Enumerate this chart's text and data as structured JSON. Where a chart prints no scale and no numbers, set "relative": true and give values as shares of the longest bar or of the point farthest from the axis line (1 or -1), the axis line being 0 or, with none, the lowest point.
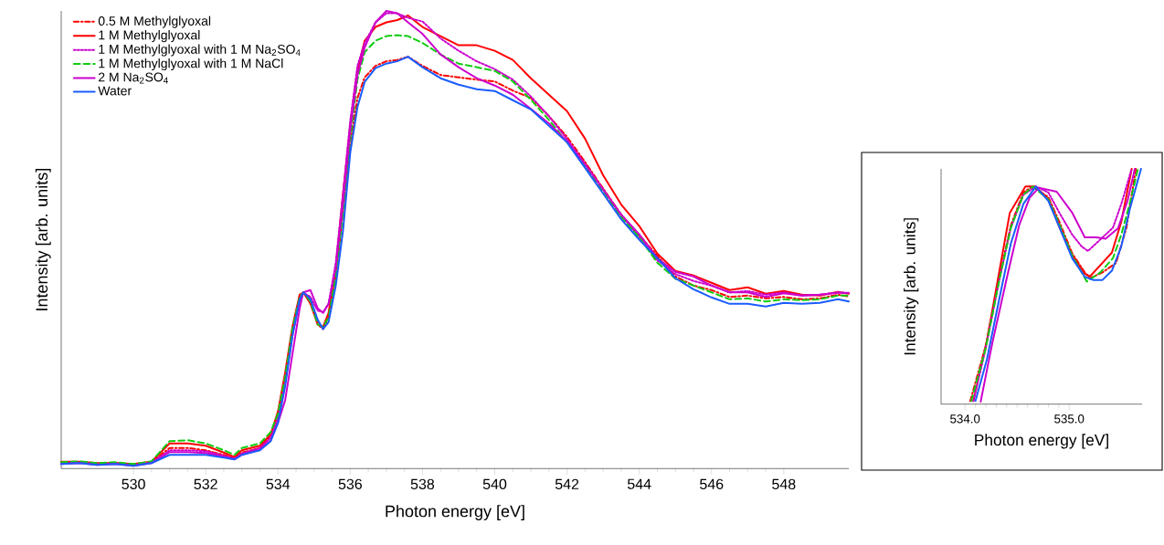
{
  "chart_data": [
    {
      "type": "line",
      "xlabel": "Photon energy [eV]",
      "ylabel": "Intensity [arb. units]",
      "relative": true,
      "legend": "top left",
      "xlim": [
        528,
        549.8
      ],
      "xticks": [
        530,
        532,
        534,
        536,
        538,
        540,
        542,
        544,
        546,
        548
      ],
      "x": [
        528,
        528.5,
        529,
        529.5,
        530,
        530.5,
        531,
        531.5,
        532,
        532.5,
        532.8,
        533,
        533.5,
        533.8,
        534,
        534.2,
        534.4,
        534.6,
        534.7,
        534.9,
        535.1,
        535.25,
        535.4,
        535.6,
        535.8,
        536,
        536.2,
        536.4,
        536.7,
        537,
        537.3,
        537.6,
        538,
        538.5,
        539,
        539.5,
        540,
        540.5,
        541,
        541.5,
        542,
        542.5,
        543,
        543.5,
        544,
        544.5,
        545,
        545.5,
        546,
        546.5,
        547,
        547.5,
        548,
        548.5,
        549,
        549.5,
        549.8
      ],
      "series": [
        {
          "name": "0.5 M Methylglyoxal",
          "color": "#ff0000",
          "line_style": "dashdot",
          "values": [
            0.012,
            0.014,
            0.01,
            0.012,
            0.008,
            0.014,
            0.045,
            0.045,
            0.04,
            0.03,
            0.022,
            0.035,
            0.045,
            0.07,
            0.115,
            0.2,
            0.3,
            0.375,
            0.385,
            0.365,
            0.315,
            0.305,
            0.33,
            0.42,
            0.56,
            0.71,
            0.81,
            0.855,
            0.88,
            0.89,
            0.893,
            0.9,
            0.88,
            0.86,
            0.855,
            0.85,
            0.846,
            0.826,
            0.81,
            0.77,
            0.725,
            0.67,
            0.612,
            0.555,
            0.51,
            0.465,
            0.42,
            0.4,
            0.39,
            0.375,
            0.378,
            0.372,
            0.375,
            0.37,
            0.372,
            0.38,
            0.376
          ]
        },
        {
          "name": "1 M Methylglyoxal",
          "color": "#ff0000",
          "line_style": "solid",
          "values": [
            0.015,
            0.015,
            0.012,
            0.012,
            0.01,
            0.015,
            0.055,
            0.055,
            0.05,
            0.035,
            0.025,
            0.04,
            0.05,
            0.075,
            0.125,
            0.21,
            0.31,
            0.38,
            0.385,
            0.36,
            0.315,
            0.31,
            0.34,
            0.44,
            0.6,
            0.75,
            0.87,
            0.935,
            0.965,
            0.975,
            0.98,
            0.99,
            0.965,
            0.945,
            0.925,
            0.925,
            0.913,
            0.893,
            0.853,
            0.817,
            0.781,
            0.721,
            0.641,
            0.577,
            0.53,
            0.47,
            0.432,
            0.422,
            0.406,
            0.39,
            0.396,
            0.382,
            0.388,
            0.38,
            0.378,
            0.386,
            0.382
          ]
        },
        {
          "name": "1 M Methylglyoxal with 1 M Na$_{2}$SO$_{4}$",
          "color": "#cc00cc",
          "line_style": "dotted",
          "values": [
            0.012,
            0.013,
            0.01,
            0.011,
            0.008,
            0.013,
            0.04,
            0.04,
            0.038,
            0.028,
            0.022,
            0.033,
            0.045,
            0.068,
            0.11,
            0.19,
            0.29,
            0.365,
            0.385,
            0.375,
            0.345,
            0.342,
            0.36,
            0.45,
            0.6,
            0.76,
            0.88,
            0.93,
            0.975,
            0.995,
            0.995,
            0.985,
            0.977,
            0.94,
            0.913,
            0.89,
            0.873,
            0.85,
            0.813,
            0.77,
            0.72,
            0.665,
            0.61,
            0.553,
            0.506,
            0.455,
            0.425,
            0.41,
            0.4,
            0.385,
            0.388,
            0.38,
            0.385,
            0.378,
            0.38,
            0.385,
            0.383
          ]
        },
        {
          "name": "1 M Methylglyoxal with 1 M NaCl",
          "color": "#11cc11",
          "line_style": "dashed",
          "values": [
            0.014,
            0.016,
            0.012,
            0.014,
            0.01,
            0.016,
            0.06,
            0.062,
            0.055,
            0.04,
            0.03,
            0.045,
            0.055,
            0.08,
            0.12,
            0.2,
            0.305,
            0.375,
            0.385,
            0.365,
            0.315,
            0.31,
            0.33,
            0.42,
            0.56,
            0.72,
            0.85,
            0.91,
            0.935,
            0.945,
            0.947,
            0.945,
            0.93,
            0.905,
            0.885,
            0.877,
            0.869,
            0.846,
            0.806,
            0.762,
            0.713,
            0.66,
            0.605,
            0.55,
            0.505,
            0.45,
            0.415,
            0.4,
            0.385,
            0.37,
            0.372,
            0.365,
            0.37,
            0.368,
            0.37,
            0.378,
            0.378
          ]
        },
        {
          "name": "2 M Na$_{2}$SO$_{4}$",
          "color": "#cc00cc",
          "line_style": "solid",
          "values": [
            0.01,
            0.012,
            0.008,
            0.01,
            0.006,
            0.012,
            0.036,
            0.036,
            0.034,
            0.026,
            0.02,
            0.03,
            0.042,
            0.062,
            0.1,
            0.15,
            0.25,
            0.35,
            0.385,
            0.39,
            0.35,
            0.34,
            0.36,
            0.44,
            0.58,
            0.74,
            0.86,
            0.92,
            0.975,
            1.0,
            0.995,
            0.975,
            0.95,
            0.905,
            0.877,
            0.853,
            0.837,
            0.817,
            0.786,
            0.754,
            0.715,
            0.665,
            0.61,
            0.555,
            0.512,
            0.46,
            0.43,
            0.42,
            0.4,
            0.385,
            0.385,
            0.375,
            0.383,
            0.378,
            0.38,
            0.384,
            0.384
          ]
        },
        {
          "name": "Water",
          "color": "#1a5cff",
          "line_style": "solid",
          "values": [
            0.01,
            0.012,
            0.008,
            0.01,
            0.006,
            0.012,
            0.03,
            0.03,
            0.03,
            0.024,
            0.02,
            0.03,
            0.04,
            0.06,
            0.1,
            0.18,
            0.29,
            0.37,
            0.385,
            0.37,
            0.325,
            0.305,
            0.32,
            0.4,
            0.52,
            0.69,
            0.79,
            0.845,
            0.875,
            0.885,
            0.89,
            0.9,
            0.877,
            0.853,
            0.839,
            0.829,
            0.825,
            0.805,
            0.785,
            0.749,
            0.713,
            0.657,
            0.601,
            0.545,
            0.5,
            0.46,
            0.416,
            0.392,
            0.374,
            0.36,
            0.36,
            0.354,
            0.362,
            0.36,
            0.362,
            0.37,
            0.365
          ]
        }
      ]
    },
    {
      "type": "line",
      "xlabel": "Photon energy [eV]",
      "ylabel": "Intensity [arb. units]",
      "relative": true,
      "xlim": [
        533.77,
        535.7
      ],
      "xticks": [
        {
          "value": 534,
          "label": "534.0"
        },
        {
          "value": 535,
          "label": "535.0"
        }
      ],
      "series": [
        {
          "color": "#ff0000",
          "line_style": "dashdot",
          "x": [
            534.05,
            534.2,
            534.33,
            534.44,
            534.56,
            534.65,
            534.8,
            534.91,
            535.03,
            535.15,
            535.2,
            535.32,
            535.45,
            535.55,
            535.64
          ],
          "values": [
            0.013,
            0.25,
            0.54,
            0.76,
            0.9,
            0.925,
            0.88,
            0.77,
            0.64,
            0.56,
            0.535,
            0.56,
            0.6,
            0.75,
            1.0
          ]
        },
        {
          "color": "#ff0000",
          "line_style": "solid",
          "x": [
            534.08,
            534.21,
            534.33,
            534.43,
            534.58,
            534.68,
            534.8,
            534.91,
            535.03,
            535.15,
            535.2,
            535.29,
            535.41,
            535.5,
            535.6
          ],
          "values": [
            0.013,
            0.27,
            0.567,
            0.813,
            0.925,
            0.925,
            0.87,
            0.748,
            0.632,
            0.554,
            0.543,
            0.586,
            0.644,
            0.774,
            1.0
          ]
        },
        {
          "color": "#cc00cc",
          "line_style": "dotted",
          "x": [
            534.08,
            534.2,
            534.33,
            534.44,
            534.56,
            534.68,
            534.8,
            534.91,
            535.03,
            535.12,
            535.18,
            535.3,
            535.42,
            535.5,
            535.6
          ],
          "values": [
            0.013,
            0.24,
            0.53,
            0.75,
            0.89,
            0.925,
            0.9,
            0.81,
            0.72,
            0.67,
            0.651,
            0.7,
            0.75,
            0.85,
            1.0
          ]
        },
        {
          "color": "#11cc11",
          "line_style": "dashed",
          "x": [
            534.06,
            534.2,
            534.33,
            534.44,
            534.56,
            534.65,
            534.8,
            534.91,
            535.03,
            535.17,
            535.3,
            535.42,
            535.5,
            535.58,
            535.66
          ],
          "values": [
            0.013,
            0.24,
            0.53,
            0.75,
            0.89,
            0.925,
            0.87,
            0.76,
            0.63,
            0.521,
            0.56,
            0.62,
            0.72,
            0.85,
            1.0
          ]
        },
        {
          "color": "#cc00cc",
          "line_style": "solid",
          "x": [
            534.15,
            534.26,
            534.41,
            534.52,
            534.62,
            534.71,
            534.88,
            535.03,
            535.15,
            535.26,
            535.35,
            535.47,
            535.56,
            535.63
          ],
          "values": [
            0.01,
            0.256,
            0.554,
            0.761,
            0.877,
            0.92,
            0.903,
            0.813,
            0.709,
            0.709,
            0.703,
            0.748,
            0.864,
            1.0
          ]
        },
        {
          "color": "#1a5cff",
          "line_style": "solid",
          "x": [
            534.1,
            534.21,
            534.33,
            534.44,
            534.56,
            534.68,
            534.8,
            534.91,
            535.03,
            535.15,
            535.23,
            535.32,
            535.41,
            535.5,
            535.58,
            535.69
          ],
          "values": [
            0.013,
            0.19,
            0.45,
            0.683,
            0.851,
            0.925,
            0.864,
            0.748,
            0.619,
            0.541,
            0.528,
            0.528,
            0.567,
            0.67,
            0.825,
            1.0
          ]
        }
      ]
    }
  ]
}
